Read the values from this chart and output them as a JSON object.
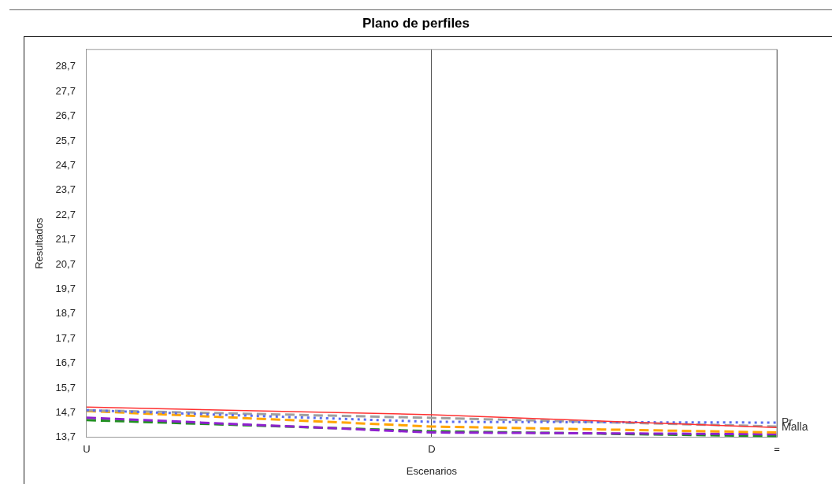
{
  "chart_data": {
    "type": "line",
    "title": "Plano de perfiles",
    "xlabel": "Escenarios",
    "ylabel": "Resultados",
    "categories": [
      "U",
      "D",
      "="
    ],
    "ylim": [
      13.7,
      29.4
    ],
    "yticks": [
      {
        "value": 13.7,
        "label": "13,7"
      },
      {
        "value": 14.7,
        "label": "14,7"
      },
      {
        "value": 15.7,
        "label": "15,7"
      },
      {
        "value": 16.7,
        "label": "16,7"
      },
      {
        "value": 17.7,
        "label": "17,7"
      },
      {
        "value": 18.7,
        "label": "18,7"
      },
      {
        "value": 19.7,
        "label": "19,7"
      },
      {
        "value": 20.7,
        "label": "20,7"
      },
      {
        "value": 21.7,
        "label": "21,7"
      },
      {
        "value": 22.7,
        "label": "22,7"
      },
      {
        "value": 23.7,
        "label": "23,7"
      },
      {
        "value": 24.7,
        "label": "24,7"
      },
      {
        "value": 25.7,
        "label": "25,7"
      },
      {
        "value": 26.7,
        "label": "26,7"
      },
      {
        "value": 27.7,
        "label": "27,7"
      },
      {
        "value": 28.7,
        "label": "28,7"
      }
    ],
    "grid": "x",
    "legend": false,
    "series": [
      {
        "name": "Malla",
        "color": "#ff3030",
        "line_style": "solid",
        "values": [
          14.93,
          14.62,
          14.1
        ]
      },
      {
        "name": "Pr",
        "color": "#5a6cf0",
        "line_style": "dotted",
        "values": [
          14.8,
          14.33,
          14.3
        ]
      },
      {
        "color": "#a0a0a0",
        "line_style": "dashed",
        "values": [
          14.8,
          14.49,
          14.14
        ]
      },
      {
        "color": "#ffa500",
        "line_style": "dashed",
        "values": [
          14.77,
          14.14,
          13.9
        ]
      },
      {
        "color": "#9020d0",
        "line_style": "dashed",
        "values": [
          14.5,
          13.9,
          13.83
        ]
      },
      {
        "color": "#209020",
        "line_style": "dashed",
        "values": [
          14.4,
          13.95,
          13.75
        ]
      }
    ]
  }
}
